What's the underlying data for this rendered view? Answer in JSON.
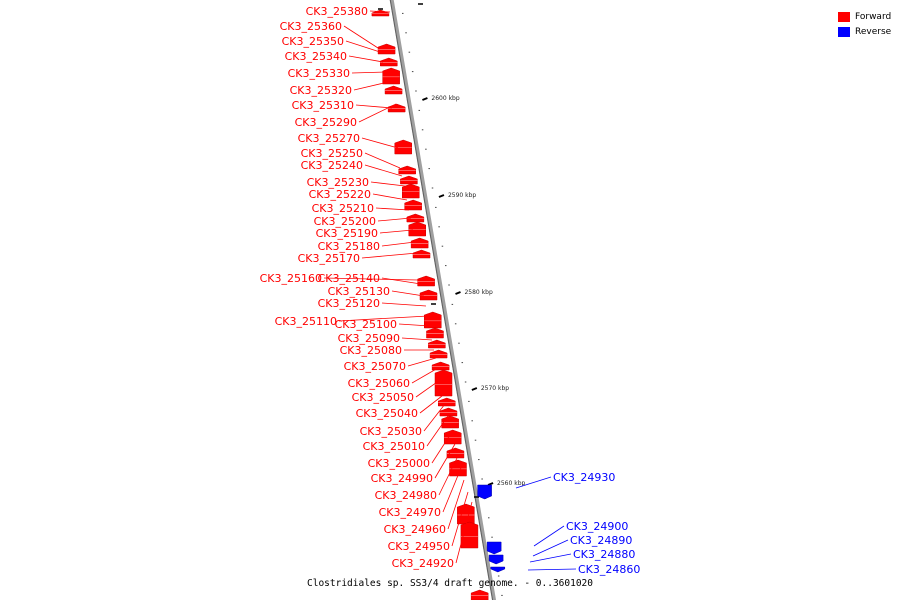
{
  "legend": {
    "items": [
      {
        "label": "Forward",
        "color": "#ff0000"
      },
      {
        "label": "Reverse",
        "color": "#0000ff"
      }
    ]
  },
  "caption": "Clostridiales sp. SS3/4 draft genome. - 0..3601020",
  "colors": {
    "forward": "#ff0000",
    "reverse": "#0000ff",
    "backbone": "#808080"
  },
  "ticks": [
    "2600 kbp",
    "2590 kbp",
    "2580 kbp",
    "2570 kbp",
    "2560 kbp"
  ],
  "forward_genes": [
    "CK3_25380",
    "CK3_25360",
    "CK3_25350",
    "CK3_25340",
    "CK3_25330",
    "CK3_25320",
    "CK3_25310",
    "CK3_25290",
    "CK3_25270",
    "CK3_25250",
    "CK3_25240",
    "CK3_25230",
    "CK3_25220",
    "CK3_25210",
    "CK3_25200",
    "CK3_25190",
    "CK3_25180",
    "CK3_25170",
    "CK3_25160",
    "CK3_25140",
    "CK3_25130",
    "CK3_25120",
    "CK3_25110",
    "CK3_25100",
    "CK3_25090",
    "CK3_25080",
    "CK3_25070",
    "CK3_25060",
    "CK3_25050",
    "CK3_25040",
    "CK3_25030",
    "CK3_25010",
    "CK3_25000",
    "CK3_24990",
    "CK3_24980",
    "CK3_24970",
    "CK3_24960",
    "CK3_24950",
    "CK3_24920"
  ],
  "reverse_genes": [
    "CK3_24930",
    "CK3_24900",
    "CK3_24890",
    "CK3_24880",
    "CK3_24860"
  ]
}
